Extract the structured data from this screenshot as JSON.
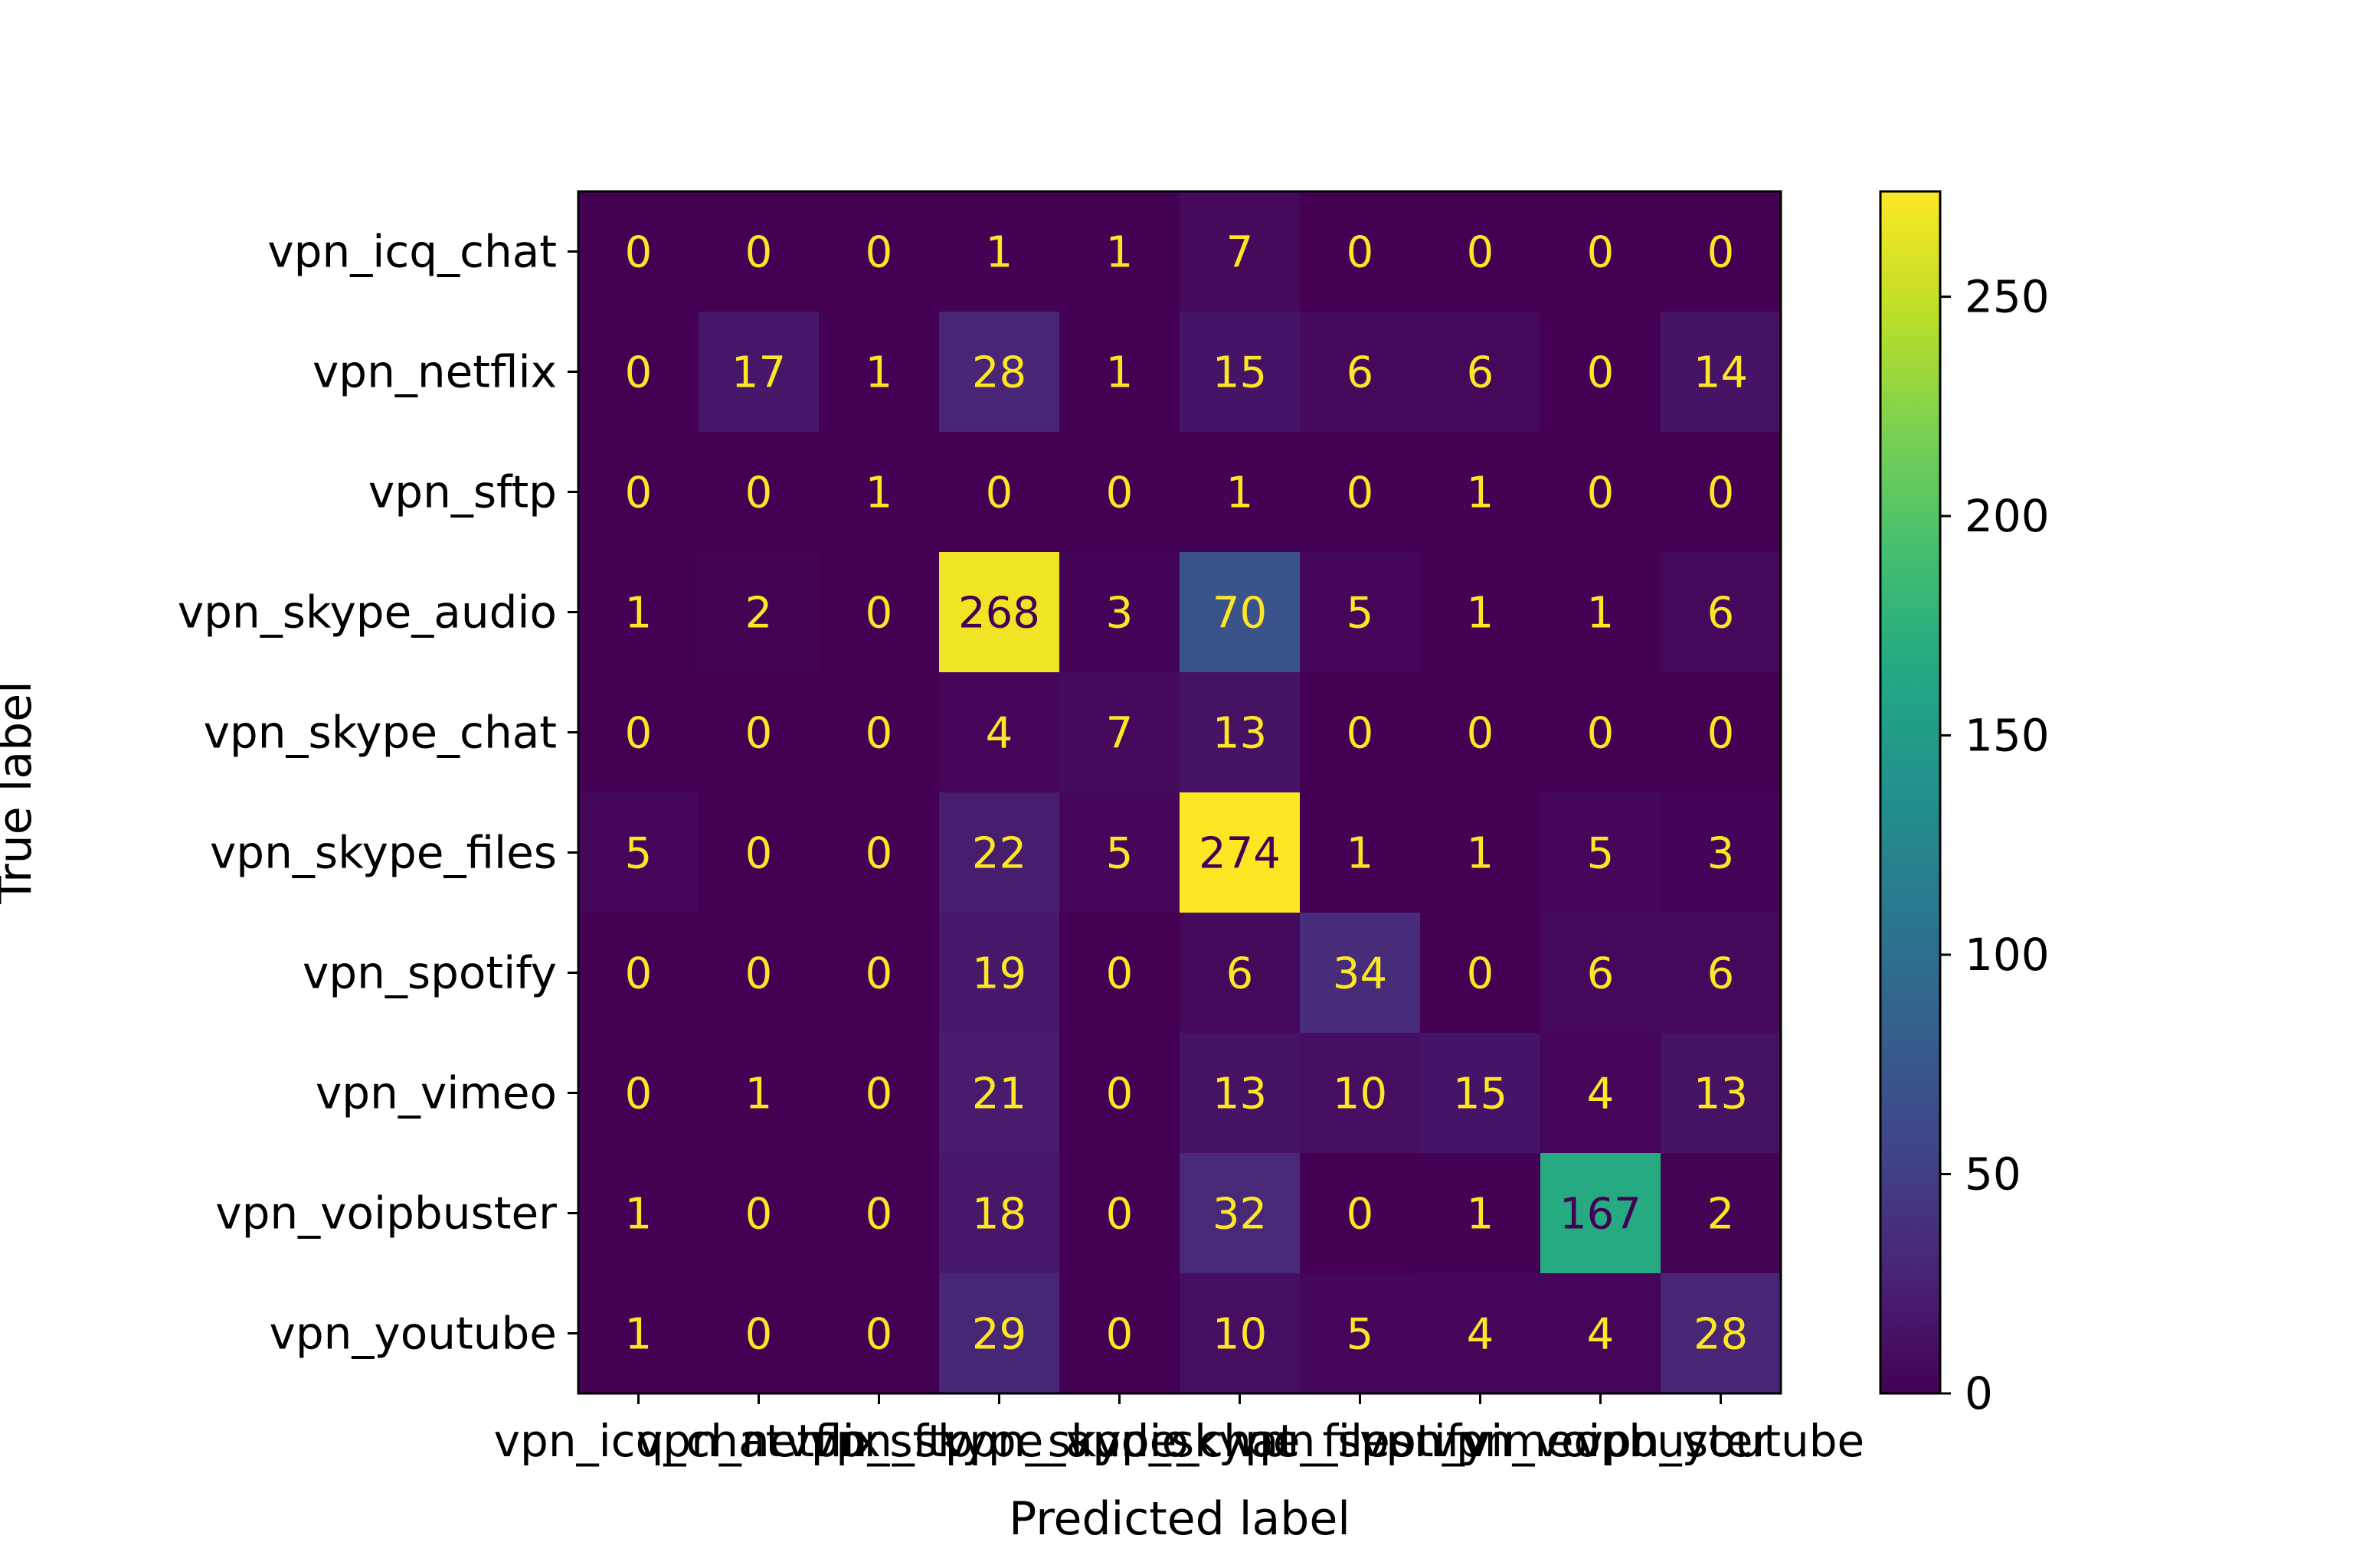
{
  "chart_data": {
    "type": "heatmap",
    "title": "",
    "xlabel": "Predicted label",
    "ylabel": "True label",
    "categories": [
      "vpn_icq_chat",
      "vpn_netflix",
      "vpn_sftp",
      "vpn_skype_audio",
      "vpn_skype_chat",
      "vpn_skype_files",
      "vpn_spotify",
      "vpn_vimeo",
      "vpn_voipbuster",
      "vpn_youtube"
    ],
    "matrix": [
      [
        0,
        0,
        0,
        1,
        1,
        7,
        0,
        0,
        0,
        0
      ],
      [
        0,
        17,
        1,
        28,
        1,
        15,
        6,
        6,
        0,
        14
      ],
      [
        0,
        0,
        1,
        0,
        0,
        1,
        0,
        1,
        0,
        0
      ],
      [
        1,
        2,
        0,
        268,
        3,
        70,
        5,
        1,
        1,
        6
      ],
      [
        0,
        0,
        0,
        4,
        7,
        13,
        0,
        0,
        0,
        0
      ],
      [
        5,
        0,
        0,
        22,
        5,
        274,
        1,
        1,
        5,
        3
      ],
      [
        0,
        0,
        0,
        19,
        0,
        6,
        34,
        0,
        6,
        6
      ],
      [
        0,
        1,
        0,
        21,
        0,
        13,
        10,
        15,
        4,
        13
      ],
      [
        1,
        0,
        0,
        18,
        0,
        32,
        0,
        1,
        167,
        2
      ],
      [
        1,
        0,
        0,
        29,
        0,
        10,
        5,
        4,
        4,
        28
      ]
    ],
    "colorbar": {
      "min": 0,
      "max": 274,
      "ticks": [
        0,
        50,
        100,
        150,
        200,
        250
      ],
      "colormap": "viridis"
    }
  }
}
